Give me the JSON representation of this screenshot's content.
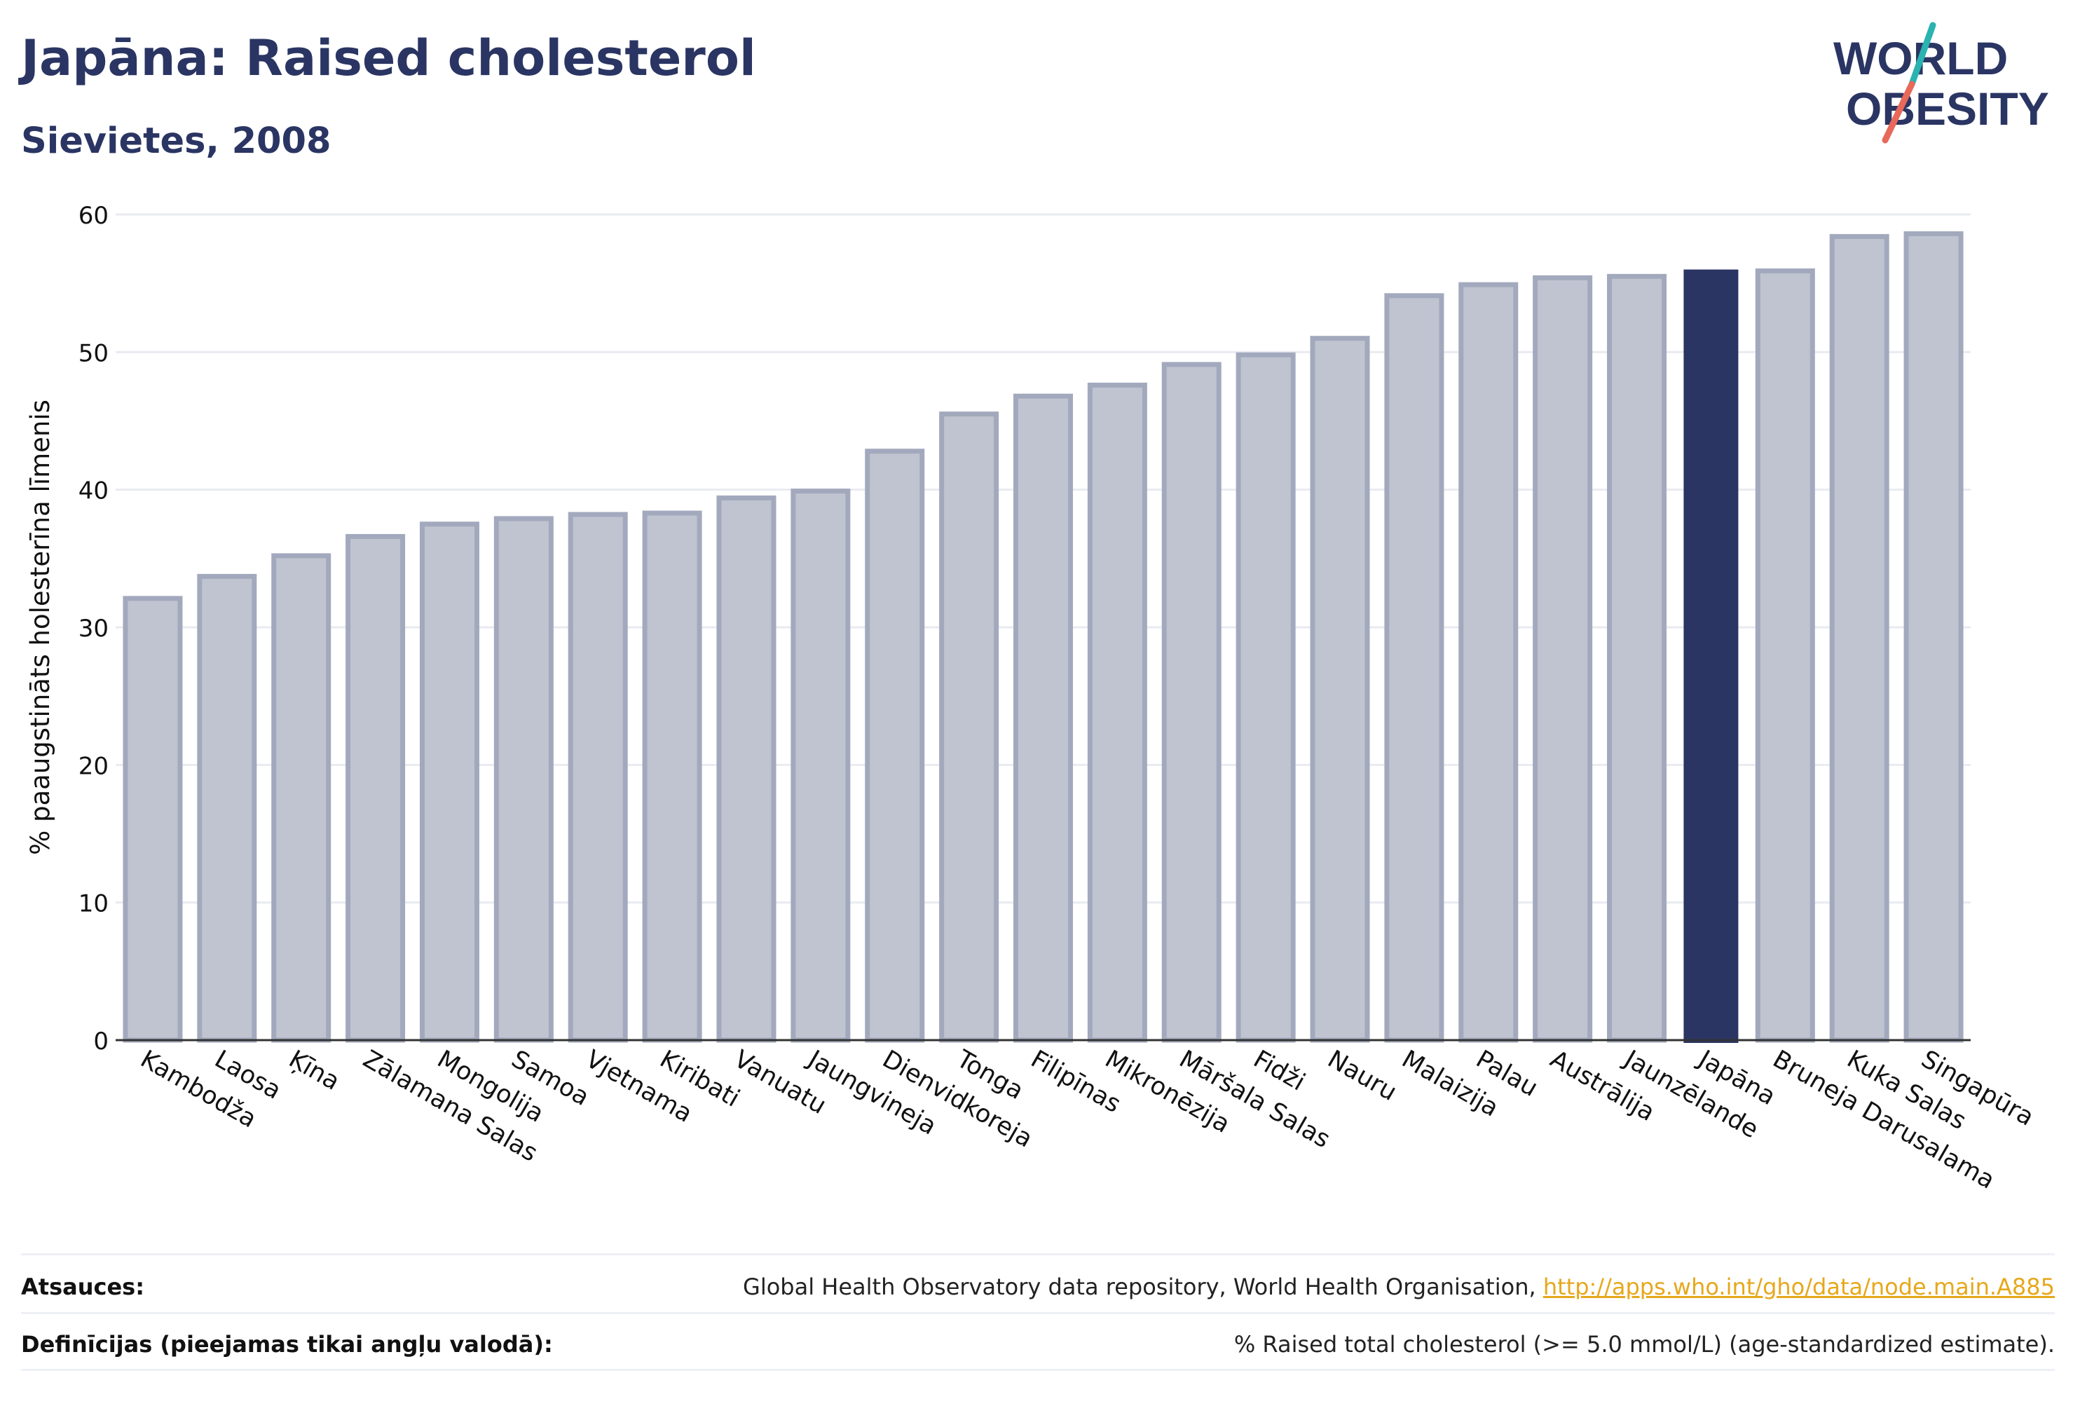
{
  "header": {
    "title": "Japāna: Raised cholesterol",
    "subtitle": "Sievietes, 2008"
  },
  "logo": {
    "line1": "WORLD",
    "line2": "OBESITY"
  },
  "colors": {
    "brand": "#2a3563",
    "bar": "#c0c4d0",
    "bar_border": "#a3a9bd",
    "highlight": "#2a3563",
    "link": "#e6a81c",
    "logo_teal": "#2ab3b0",
    "logo_coral": "#e8685a"
  },
  "chart_data": {
    "type": "bar",
    "title": "Japāna: Raised cholesterol",
    "subtitle": "Sievietes, 2008",
    "xlabel": "",
    "ylabel": "% paaugstināts holesterīna līmenis",
    "ylim": [
      0,
      60
    ],
    "yticks": [
      0,
      10,
      20,
      30,
      40,
      50,
      60
    ],
    "grid": true,
    "highlight_category": "Japāna",
    "categories": [
      "Kambodža",
      "Laosa",
      "Ķīna",
      "Zālamana Salas",
      "Mongolija",
      "Samoa",
      "Vjetnama",
      "Kiribati",
      "Vanuatu",
      "Jaungvineja",
      "Dienvidkoreja",
      "Tonga",
      "Filipīnas",
      "Mikronēzija",
      "Māršala Salas",
      "Fidži",
      "Nauru",
      "Malaizija",
      "Palau",
      "Austrālija",
      "Jaunzēlande",
      "Japāna",
      "Bruneja Darusalama",
      "Kuka Salas",
      "Singapūra"
    ],
    "values": [
      32.1,
      33.7,
      35.2,
      36.6,
      37.5,
      37.9,
      38.2,
      38.3,
      39.4,
      39.9,
      42.8,
      45.5,
      46.8,
      47.6,
      49.1,
      49.8,
      51.0,
      54.1,
      54.9,
      55.4,
      55.5,
      56.0,
      55.9,
      58.4,
      58.6
    ]
  },
  "footer": {
    "sources_label": "Atsauces:",
    "sources_text": "Global Health Observatory data repository, World Health Organisation, ",
    "sources_link": "http://apps.who.int/gho/data/node.main.A885",
    "definitions_label": "Definīcijas (pieejamas tikai angļu valodā):",
    "definitions_text": "% Raised total cholesterol (>= 5.0 mmol/L) (age-standardized estimate)."
  }
}
